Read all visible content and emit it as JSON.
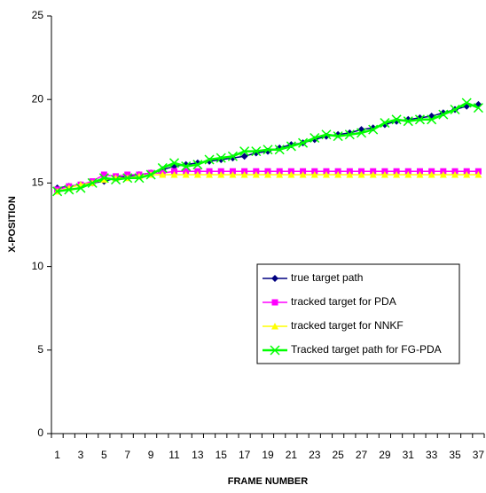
{
  "chart_data": {
    "type": "line",
    "x_label": "FRAME NUMBER",
    "y_label": "X-POSITION",
    "categories": [
      "1",
      null,
      "3",
      null,
      "5",
      null,
      "7",
      null,
      "9",
      null,
      "11",
      null,
      "13",
      null,
      "15",
      null,
      "17",
      null,
      "19",
      null,
      "21",
      null,
      "23",
      null,
      "25",
      null,
      "27",
      null,
      "29",
      null,
      "31",
      null,
      "33",
      null,
      "35",
      null,
      "37"
    ],
    "ylim": [
      0,
      25
    ],
    "yticks": [
      0,
      5,
      10,
      15,
      20,
      25
    ],
    "grid": false,
    "legend": "right",
    "series": [
      {
        "name": "true target path",
        "color": "#000080",
        "marker": "diamond",
        "values": [
          14.7,
          14.8,
          14.9,
          15.0,
          15.1,
          15.3,
          15.4,
          15.5,
          15.6,
          15.8,
          16.0,
          16.1,
          16.2,
          16.3,
          16.4,
          16.5,
          16.6,
          16.8,
          16.9,
          17.1,
          17.3,
          17.4,
          17.6,
          17.8,
          17.9,
          18.0,
          18.2,
          18.3,
          18.5,
          18.7,
          18.8,
          18.9,
          19.0,
          19.2,
          19.4,
          19.6,
          19.7
        ]
      },
      {
        "name": "tracked target  for PDA",
        "color": "#ff00ff",
        "marker": "square",
        "values": [
          14.6,
          14.8,
          14.9,
          15.1,
          15.5,
          15.4,
          15.5,
          15.5,
          15.6,
          15.6,
          15.7,
          15.7,
          15.7,
          15.7,
          15.7,
          15.7,
          15.7,
          15.7,
          15.7,
          15.7,
          15.7,
          15.7,
          15.7,
          15.7,
          15.7,
          15.7,
          15.7,
          15.7,
          15.7,
          15.7,
          15.7,
          15.7,
          15.7,
          15.7,
          15.7,
          15.7,
          15.7
        ]
      },
      {
        "name": "tracked target for NNKF",
        "color": "#ffff00",
        "marker": "triangle",
        "values": [
          14.5,
          14.7,
          14.9,
          15.0,
          15.2,
          15.3,
          15.3,
          15.4,
          15.5,
          15.5,
          15.5,
          15.5,
          15.5,
          15.5,
          15.5,
          15.5,
          15.5,
          15.5,
          15.5,
          15.5,
          15.5,
          15.5,
          15.5,
          15.5,
          15.5,
          15.5,
          15.5,
          15.5,
          15.5,
          15.5,
          15.5,
          15.5,
          15.5,
          15.5,
          15.5,
          15.5,
          15.5
        ]
      },
      {
        "name": "Tracked target path for FG-PDA",
        "color": "#00ff00",
        "marker": "x",
        "values": [
          14.5,
          14.6,
          14.7,
          15.0,
          15.3,
          15.2,
          15.3,
          15.3,
          15.5,
          15.9,
          16.2,
          16.0,
          16.1,
          16.4,
          16.5,
          16.6,
          16.9,
          16.9,
          17.0,
          17.0,
          17.2,
          17.4,
          17.7,
          17.9,
          17.8,
          17.9,
          18.0,
          18.2,
          18.6,
          18.8,
          18.7,
          18.8,
          18.8,
          19.1,
          19.4,
          19.8,
          19.5
        ]
      }
    ]
  }
}
